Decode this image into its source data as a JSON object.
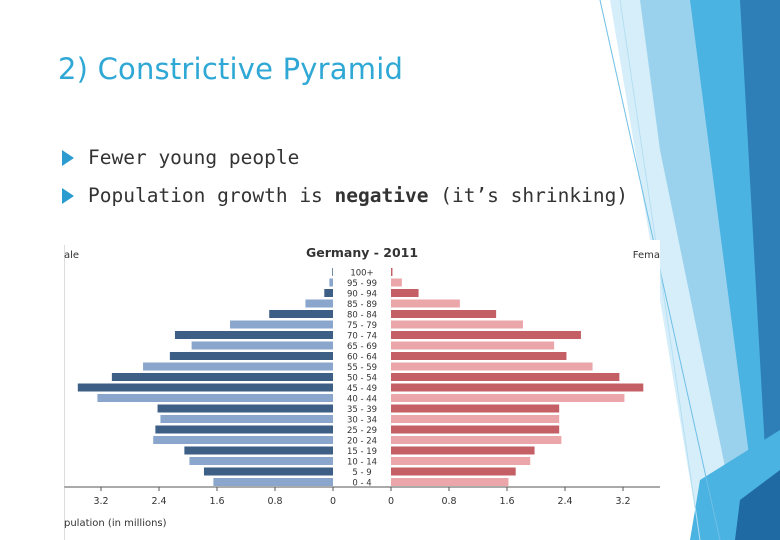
{
  "slide": {
    "title": "2) Constrictive Pyramid",
    "bullets": [
      {
        "text": "Fewer young people"
      },
      {
        "before": "Population growth is ",
        "bold": "negative",
        "after": " (it’s shrinking)"
      }
    ]
  },
  "chart_data": {
    "type": "bar",
    "title": "Germany - 2011",
    "left_label": "Male",
    "right_label": "Female",
    "left_label_visible": "ale",
    "right_label_visible": "Fema",
    "xlabel": "Population (in millions)",
    "xlabel_visible": "pulation (in millions)",
    "xticks": [
      "3.2",
      "2.4",
      "1.6",
      "0.8",
      "0",
      "0",
      "0.8",
      "1.6",
      "2.4",
      "3.2"
    ],
    "xlim": [
      0,
      3.6
    ],
    "categories": [
      "100+",
      "95 - 99",
      "90 - 94",
      "85 - 89",
      "80 - 84",
      "75 - 79",
      "70 - 74",
      "65 - 69",
      "60 - 64",
      "55 - 59",
      "50 - 54",
      "45 - 49",
      "40 - 44",
      "35 - 39",
      "30 - 34",
      "25 - 29",
      "20 - 24",
      "15 - 19",
      "10 - 14",
      "5 - 9",
      "0 - 4"
    ],
    "series": [
      {
        "name": "Male",
        "values": [
          0.01,
          0.05,
          0.12,
          0.38,
          0.88,
          1.42,
          2.18,
          1.95,
          2.25,
          2.62,
          3.05,
          3.52,
          3.25,
          2.42,
          2.38,
          2.45,
          2.48,
          2.05,
          1.98,
          1.78,
          1.65
        ]
      },
      {
        "name": "Female",
        "values": [
          0.02,
          0.15,
          0.38,
          0.95,
          1.45,
          1.82,
          2.62,
          2.25,
          2.42,
          2.78,
          3.15,
          3.48,
          3.22,
          2.32,
          2.32,
          2.32,
          2.35,
          1.98,
          1.92,
          1.72,
          1.62
        ]
      }
    ],
    "colors": {
      "male_dark": "#3d5f86",
      "male_light": "#8aa6cc",
      "female_dark": "#c45f66",
      "female_light": "#eba6aa",
      "axis": "#555555"
    }
  }
}
